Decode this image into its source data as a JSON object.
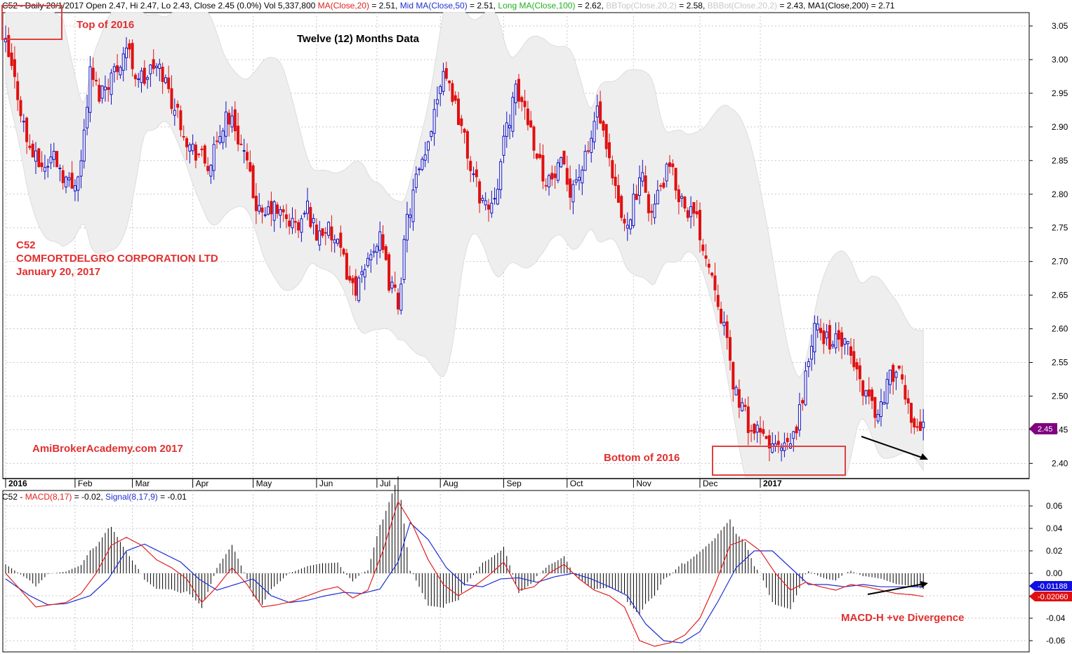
{
  "header": {
    "parts": [
      {
        "text": "C52 - Daily 20/1/2017 Open 2.47, Hi 2.47, Lo 2.43, Close 2.45 (0.0%) Vol 5,337,800 ",
        "color": "#000000"
      },
      {
        "text": "MA(Close,20)",
        "color": "#e02020"
      },
      {
        "text": " = 2.51, ",
        "color": "#000000"
      },
      {
        "text": "Mid MA(Close,50)",
        "color": "#2030d0"
      },
      {
        "text": " = 2.51, ",
        "color": "#000000"
      },
      {
        "text": "Long MA(Close,100)",
        "color": "#20b020"
      },
      {
        "text": " = 2.62, ",
        "color": "#000000"
      },
      {
        "text": "BBTop(Close,20,2)",
        "color": "#c8c8c8"
      },
      {
        "text": " = 2.58, ",
        "color": "#000000"
      },
      {
        "text": "BBBot(Close,20,2)",
        "color": "#c8c8c8"
      },
      {
        "text": " = 2.43, MA1(Close,200) = 2.71",
        "color": "#000000"
      }
    ]
  },
  "macd_header": {
    "parts": [
      {
        "text": "C52 - ",
        "color": "#000000"
      },
      {
        "text": "MACD(8,17)",
        "color": "#e02020"
      },
      {
        "text": " = -0.02, ",
        "color": "#000000"
      },
      {
        "text": "Signal(8,17,9)",
        "color": "#2030d0"
      },
      {
        "text": " = -0.01",
        "color": "#000000"
      }
    ]
  },
  "annotations": {
    "top_label": "Top of 2016",
    "title": "Twelve (12) Months Data",
    "ticker": "C52",
    "company": "COMFORTDELGRO CORPORATION LTD",
    "date": "January 20, 2017",
    "watermark": "AmiBrokerAcademy.com  2017",
    "bottom_label": "Bottom of 2016",
    "divergence_label": "MACD-H +ve Divergence"
  },
  "colors": {
    "up": "#1010c0",
    "down": "#e01010",
    "band": "#eeeeee",
    "macd": "#e02020",
    "signal": "#2030d0",
    "accent": "#e03030",
    "price_tag": "#800080"
  },
  "chart_data": [
    {
      "type": "candlestick",
      "title": "Twelve (12) Months Data",
      "x_ticks": [
        "2016",
        "Feb",
        "Mar",
        "Apr",
        "May",
        "Jun",
        "Jul",
        "Aug",
        "Sep",
        "Oct",
        "Nov",
        "Dec",
        "2017"
      ],
      "y_ticks": [
        "3.05",
        "3.00",
        "2.95",
        "2.90",
        "2.85",
        "2.80",
        "2.75",
        "2.70",
        "2.65",
        "2.60",
        "2.55",
        "2.50",
        "2.45",
        "2.40"
      ],
      "ylim": [
        2.38,
        3.06
      ],
      "last_close": "2.45",
      "close_path": [
        [
          0,
          3.02
        ],
        [
          4,
          2.95
        ],
        [
          7,
          2.88
        ],
        [
          10,
          2.85
        ],
        [
          13,
          2.84
        ],
        [
          16,
          2.86
        ],
        [
          19,
          2.83
        ],
        [
          22,
          2.81
        ],
        [
          25,
          2.85
        ],
        [
          28,
          2.98
        ],
        [
          31,
          2.95
        ],
        [
          34,
          2.97
        ],
        [
          37,
          2.99
        ],
        [
          40,
          3.02
        ],
        [
          43,
          2.98
        ],
        [
          46,
          2.97
        ],
        [
          49,
          2.99
        ],
        [
          52,
          2.98
        ],
        [
          55,
          2.94
        ],
        [
          58,
          2.91
        ],
        [
          61,
          2.87
        ],
        [
          64,
          2.86
        ],
        [
          67,
          2.84
        ],
        [
          70,
          2.87
        ],
        [
          73,
          2.92
        ],
        [
          76,
          2.9
        ],
        [
          79,
          2.86
        ],
        [
          82,
          2.8
        ],
        [
          85,
          2.76
        ],
        [
          88,
          2.78
        ],
        [
          91,
          2.77
        ],
        [
          94,
          2.76
        ],
        [
          97,
          2.75
        ],
        [
          100,
          2.78
        ],
        [
          103,
          2.74
        ],
        [
          106,
          2.75
        ],
        [
          109,
          2.73
        ],
        [
          112,
          2.7
        ],
        [
          115,
          2.66
        ],
        [
          118,
          2.67
        ],
        [
          121,
          2.72
        ],
        [
          124,
          2.73
        ],
        [
          127,
          2.67
        ],
        [
          130,
          2.64
        ],
        [
          133,
          2.76
        ],
        [
          136,
          2.82
        ],
        [
          139,
          2.85
        ],
        [
          142,
          2.93
        ],
        [
          145,
          2.99
        ],
        [
          148,
          2.95
        ],
        [
          151,
          2.9
        ],
        [
          154,
          2.84
        ],
        [
          157,
          2.8
        ],
        [
          160,
          2.78
        ],
        [
          163,
          2.82
        ],
        [
          166,
          2.9
        ],
        [
          169,
          2.95
        ],
        [
          172,
          2.93
        ],
        [
          175,
          2.88
        ],
        [
          178,
          2.83
        ],
        [
          181,
          2.82
        ],
        [
          184,
          2.84
        ],
        [
          187,
          2.81
        ],
        [
          190,
          2.83
        ],
        [
          193,
          2.86
        ],
        [
          196,
          2.93
        ],
        [
          199,
          2.86
        ],
        [
          202,
          2.8
        ],
        [
          205,
          2.75
        ],
        [
          208,
          2.79
        ],
        [
          211,
          2.82
        ],
        [
          214,
          2.77
        ],
        [
          217,
          2.81
        ],
        [
          220,
          2.84
        ],
        [
          223,
          2.8
        ],
        [
          226,
          2.78
        ],
        [
          229,
          2.76
        ],
        [
          232,
          2.71
        ],
        [
          235,
          2.67
        ],
        [
          238,
          2.6
        ],
        [
          241,
          2.52
        ],
        [
          244,
          2.48
        ],
        [
          247,
          2.45
        ],
        [
          250,
          2.44
        ],
        [
          253,
          2.43
        ],
        [
          256,
          2.42
        ],
        [
          259,
          2.42
        ],
        [
          262,
          2.45
        ],
        [
          265,
          2.53
        ],
        [
          268,
          2.6
        ],
        [
          271,
          2.59
        ],
        [
          274,
          2.58
        ],
        [
          277,
          2.58
        ],
        [
          280,
          2.56
        ],
        [
          283,
          2.52
        ],
        [
          286,
          2.5
        ],
        [
          289,
          2.47
        ],
        [
          292,
          2.52
        ],
        [
          295,
          2.54
        ],
        [
          298,
          2.5
        ],
        [
          301,
          2.46
        ],
        [
          304,
          2.45
        ]
      ],
      "x_tick_index": [
        0,
        23,
        42,
        62,
        82,
        103,
        123,
        144,
        165,
        186,
        208,
        230,
        250
      ]
    },
    {
      "type": "macd",
      "series": [
        {
          "name": "MACD(8,17)",
          "value": "-0.02"
        },
        {
          "name": "Signal(8,17,9)",
          "value": "-0.01"
        }
      ],
      "y_ticks": [
        "0.06",
        "0.04",
        "0.02",
        "0.00",
        "-0.02",
        "-0.04",
        "-0.06"
      ],
      "ylim": [
        -0.07,
        0.068
      ],
      "macd_tag": "-0.02060",
      "signal_tag": "-0.01188",
      "macd_path": [
        [
          0,
          0.0
        ],
        [
          5,
          -0.015
        ],
        [
          10,
          -0.03
        ],
        [
          15,
          -0.028
        ],
        [
          20,
          -0.026
        ],
        [
          25,
          -0.018
        ],
        [
          30,
          0.0
        ],
        [
          35,
          0.025
        ],
        [
          40,
          0.032
        ],
        [
          45,
          0.025
        ],
        [
          50,
          0.012
        ],
        [
          55,
          0.005
        ],
        [
          60,
          -0.005
        ],
        [
          65,
          -0.026
        ],
        [
          70,
          -0.012
        ],
        [
          75,
          0.005
        ],
        [
          80,
          -0.01
        ],
        [
          85,
          -0.03
        ],
        [
          90,
          -0.028
        ],
        [
          95,
          -0.025
        ],
        [
          100,
          -0.02
        ],
        [
          105,
          -0.015
        ],
        [
          110,
          -0.012
        ],
        [
          115,
          -0.022
        ],
        [
          120,
          -0.015
        ],
        [
          125,
          0.02
        ],
        [
          130,
          0.064
        ],
        [
          135,
          0.042
        ],
        [
          140,
          0.012
        ],
        [
          145,
          -0.01
        ],
        [
          150,
          -0.02
        ],
        [
          155,
          -0.012
        ],
        [
          160,
          -0.002
        ],
        [
          165,
          0.01
        ],
        [
          170,
          -0.015
        ],
        [
          175,
          -0.012
        ],
        [
          180,
          0.0
        ],
        [
          185,
          0.008
        ],
        [
          190,
          -0.005
        ],
        [
          195,
          -0.015
        ],
        [
          200,
          -0.02
        ],
        [
          205,
          -0.03
        ],
        [
          210,
          -0.06
        ],
        [
          215,
          -0.065
        ],
        [
          220,
          -0.062
        ],
        [
          225,
          -0.055
        ],
        [
          230,
          -0.04
        ],
        [
          235,
          -0.01
        ],
        [
          240,
          0.025
        ],
        [
          245,
          0.03
        ],
        [
          250,
          0.02
        ],
        [
          255,
          0.0
        ],
        [
          260,
          -0.015
        ],
        [
          265,
          -0.008
        ],
        [
          270,
          -0.012
        ],
        [
          275,
          -0.015
        ],
        [
          280,
          -0.01
        ],
        [
          285,
          -0.012
        ],
        [
          290,
          -0.015
        ],
        [
          295,
          -0.018
        ],
        [
          300,
          -0.019
        ],
        [
          304,
          -0.0206
        ]
      ],
      "signal_path": [
        [
          0,
          -0.005
        ],
        [
          8,
          -0.02
        ],
        [
          14,
          -0.028
        ],
        [
          20,
          -0.027
        ],
        [
          28,
          -0.02
        ],
        [
          34,
          -0.005
        ],
        [
          40,
          0.02
        ],
        [
          46,
          0.026
        ],
        [
          52,
          0.018
        ],
        [
          58,
          0.01
        ],
        [
          64,
          -0.005
        ],
        [
          70,
          -0.015
        ],
        [
          76,
          -0.01
        ],
        [
          82,
          -0.005
        ],
        [
          88,
          -0.02
        ],
        [
          94,
          -0.026
        ],
        [
          100,
          -0.024
        ],
        [
          106,
          -0.02
        ],
        [
          112,
          -0.017
        ],
        [
          118,
          -0.018
        ],
        [
          124,
          -0.014
        ],
        [
          130,
          0.01
        ],
        [
          134,
          0.045
        ],
        [
          140,
          0.03
        ],
        [
          146,
          0.005
        ],
        [
          152,
          -0.01
        ],
        [
          158,
          -0.012
        ],
        [
          164,
          -0.005
        ],
        [
          170,
          -0.004
        ],
        [
          176,
          -0.008
        ],
        [
          182,
          -0.003
        ],
        [
          188,
          0.0
        ],
        [
          194,
          -0.005
        ],
        [
          200,
          -0.012
        ],
        [
          206,
          -0.02
        ],
        [
          212,
          -0.045
        ],
        [
          218,
          -0.06
        ],
        [
          224,
          -0.062
        ],
        [
          230,
          -0.052
        ],
        [
          236,
          -0.025
        ],
        [
          242,
          0.005
        ],
        [
          248,
          0.02
        ],
        [
          254,
          0.02
        ],
        [
          260,
          0.005
        ],
        [
          266,
          -0.01
        ],
        [
          272,
          -0.01
        ],
        [
          278,
          -0.012
        ],
        [
          284,
          -0.01
        ],
        [
          290,
          -0.012
        ],
        [
          296,
          -0.012
        ],
        [
          304,
          -0.01188
        ]
      ]
    }
  ]
}
